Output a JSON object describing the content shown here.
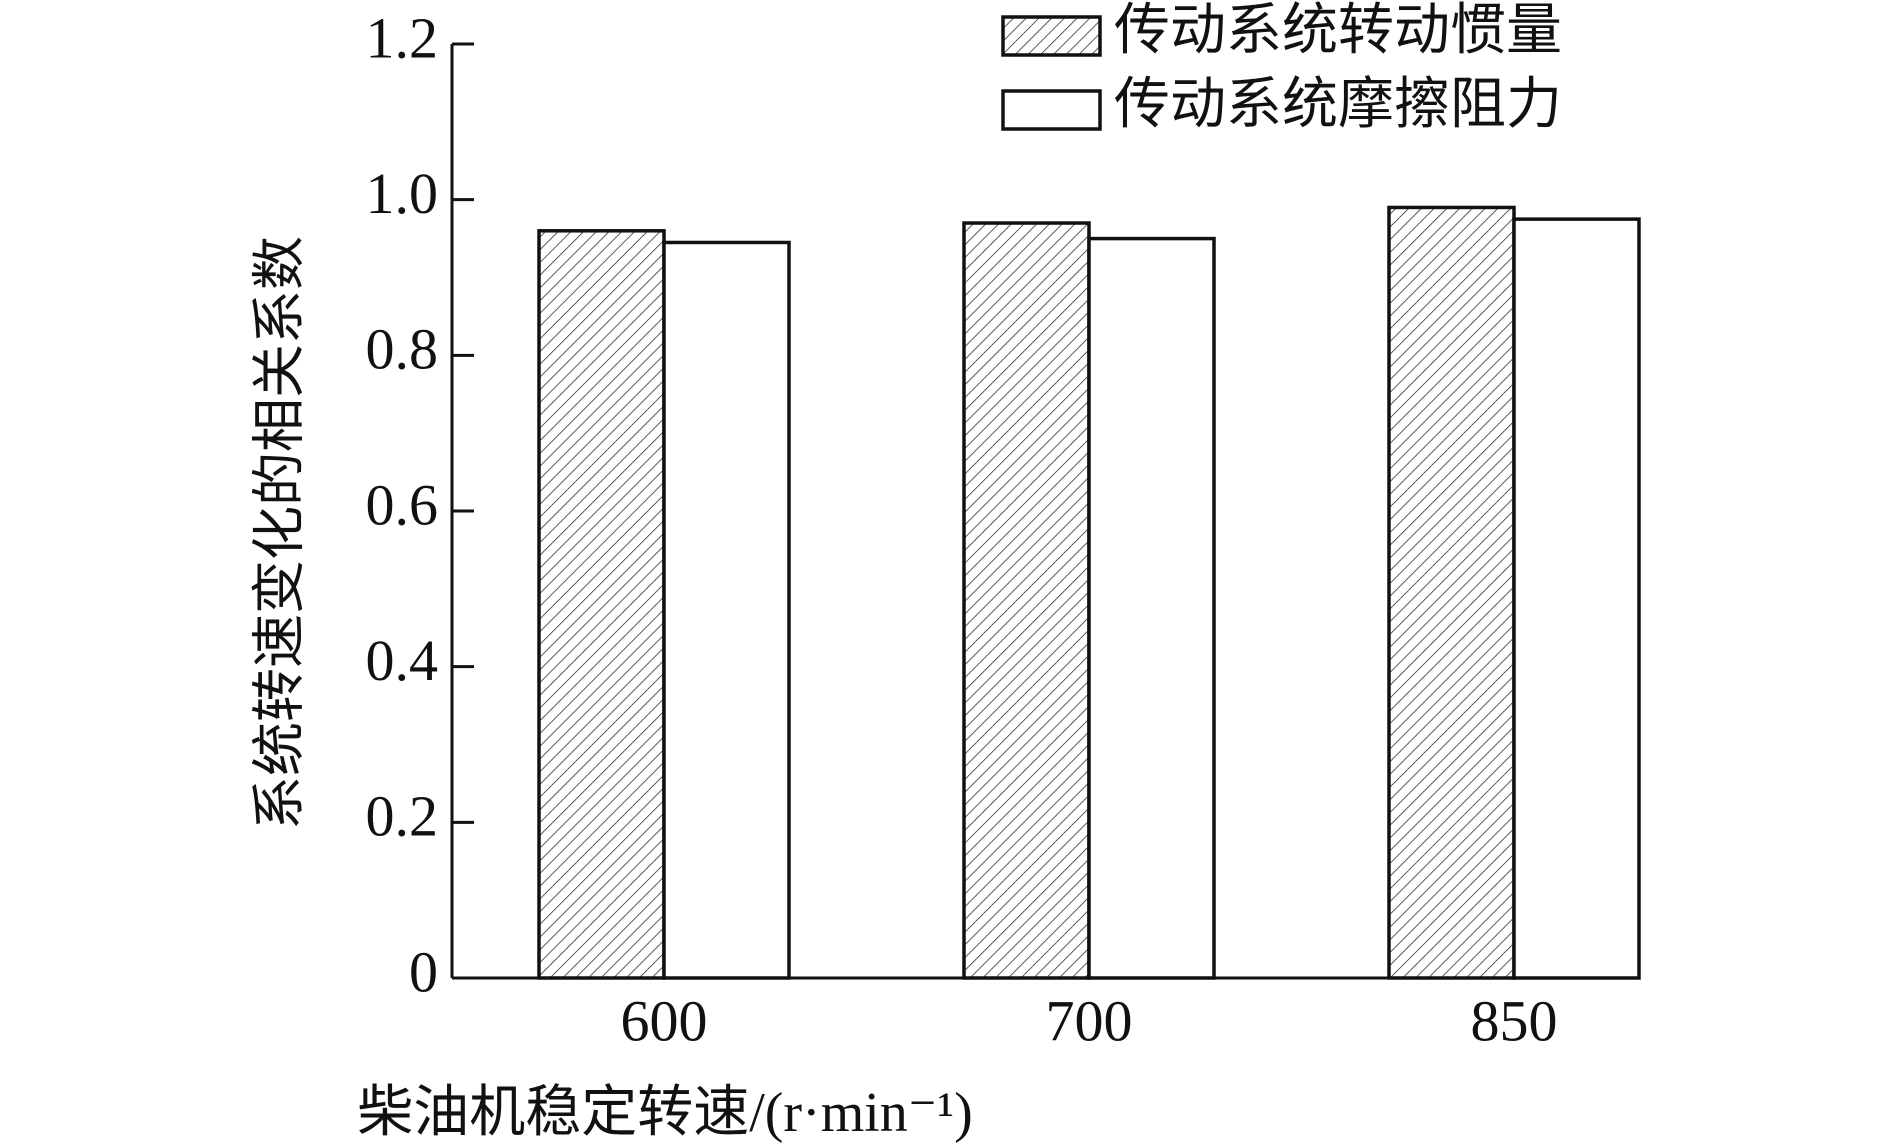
{
  "chart_data": {
    "type": "bar",
    "x_label": "柴油机稳定转速/(r·min⁻¹)",
    "y_label": "系统转速变化的相关系数",
    "categories": [
      "600",
      "700",
      "850"
    ],
    "series": [
      {
        "name": "传动系统转动惯量",
        "color": "#ffffff",
        "hatch": true,
        "values": [
          0.96,
          0.97,
          0.99
        ]
      },
      {
        "name": "传动系统摩擦阻力",
        "color": "#ffffff",
        "hatch": false,
        "values": [
          0.945,
          0.95,
          0.975
        ]
      }
    ],
    "ylim": [
      0,
      1.2
    ],
    "yticks": [
      0,
      {
        "value": 0.2,
        "label": "0.2"
      },
      {
        "value": 0.4,
        "label": "0.4"
      },
      {
        "value": 0.6,
        "label": "0.6"
      },
      {
        "value": 0.8,
        "label": "0.8"
      },
      {
        "value": 1.0,
        "label": "1.0"
      },
      {
        "value": 1.2,
        "label": "1.2"
      }
    ],
    "legend": "top-right",
    "grid": false
  }
}
